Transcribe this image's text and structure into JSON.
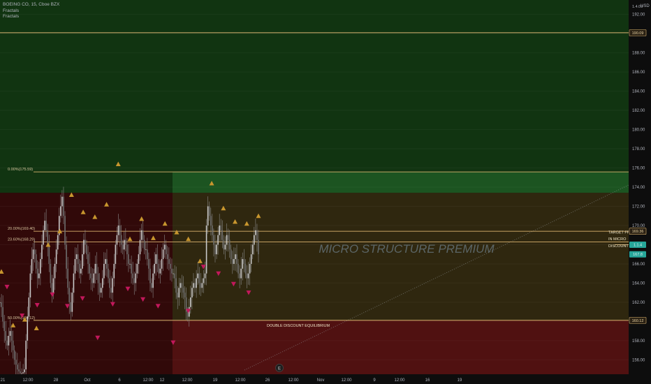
{
  "legend": {
    "symbol": "BOEING CO, 15, Cboe BZX",
    "studies": [
      "Fractals",
      "Fractals"
    ]
  },
  "currency": "USD",
  "watermark": "MICRO STRUCTURE PREMIUM",
  "colors": {
    "background": "#0d0d0d",
    "premium_zone": "#113411",
    "discount_zone": "#3a0c0c",
    "fib_line": "#d9b26f",
    "up_fractal": "#c8962e",
    "down_fractal": "#c2185b",
    "candle": "#8a8a8a",
    "price_badge": "#26a69a"
  },
  "chart_data": {
    "type": "candlestick",
    "symbol": "BOEING CO",
    "interval": "15",
    "exchange": "Cboe BZX",
    "ylim": [
      154.5,
      193.5
    ],
    "y_ticks": [
      156,
      158,
      160,
      162,
      164,
      166,
      168,
      170,
      172,
      174,
      176,
      178,
      180,
      182,
      184,
      186,
      188,
      190,
      192
    ],
    "x_ticks": [
      "21",
      "12:00",
      "28",
      "Oct",
      "6",
      "12:00",
      "12",
      "12:00",
      "19",
      "12:00",
      "26",
      "12:00",
      "Nov",
      "12:00",
      "9",
      "12:00",
      "16",
      "19"
    ],
    "top_partial_tick": "1.4.00",
    "horizontal_levels": [
      {
        "label": "",
        "price": 190.09,
        "badge": "190.09"
      },
      {
        "label": "0.00%(175.59)",
        "price": 175.59
      },
      {
        "label": "20.00%(169.40)",
        "price": 169.4,
        "badge": "169.36"
      },
      {
        "label": "23.60%(168.29)",
        "price": 168.29
      },
      {
        "label": "50.00%(160.12)",
        "price": 160.12,
        "badge": "160.12"
      }
    ],
    "zones": [
      {
        "name": "premium",
        "from": 173.4,
        "to": 193.5
      },
      {
        "name": "discount",
        "from": 154.5,
        "to": 173.4
      }
    ],
    "annotations": [
      {
        "text": "DOUBLE DISCOUNT EQUILIBRIUM",
        "price": 159.6
      },
      {
        "text": "TARGET FF",
        "price": 169.3
      },
      {
        "text": "IN MICRO",
        "price": 168.6
      },
      {
        "text": "DISCOUNT",
        "price": 167.9
      }
    ],
    "right_badges": [
      {
        "text": "1.1.4",
        "price": 168.0
      },
      {
        "text": "167.8",
        "price": 167.0
      }
    ],
    "event_marker": "E",
    "closes": [
      162.0,
      161.5,
      160.0,
      159.0,
      158.0,
      157.5,
      158.5,
      159.0,
      158.0,
      157.0,
      156.0,
      155.5,
      155.0,
      154.8,
      154.6,
      154.6,
      154.7,
      155.0,
      158.0,
      160.5,
      162.5,
      165.0,
      166.5,
      167.5,
      167.0,
      165.5,
      164.5,
      165.0,
      166.5,
      168.0,
      169.5,
      170.5,
      169.5,
      168.0,
      166.0,
      164.0,
      163.0,
      164.5,
      166.0,
      167.5,
      169.0,
      171.0,
      172.0,
      173.0,
      171.0,
      168.0,
      165.5,
      163.5,
      162.0,
      161.0,
      163.0,
      165.0,
      166.5,
      167.0,
      166.0,
      165.0,
      165.5,
      167.0,
      168.5,
      168.0,
      167.0,
      166.0,
      165.0,
      164.5,
      164.0,
      165.0,
      166.0,
      165.0,
      164.0,
      163.0,
      163.5,
      164.5,
      166.0,
      166.5,
      165.5,
      164.5,
      163.5,
      163.0,
      164.5,
      166.0,
      168.0,
      169.0,
      170.0,
      169.0,
      168.0,
      167.5,
      168.5,
      168.0,
      167.0,
      166.0,
      166.0,
      165.0,
      164.5,
      164.0,
      165.0,
      166.0,
      167.0,
      168.5,
      169.5,
      168.5,
      167.5,
      167.5,
      166.5,
      165.5,
      164.0,
      163.5,
      165.0,
      166.0,
      167.0,
      166.0,
      165.0,
      165.5,
      166.5,
      167.5,
      168.0,
      167.0,
      166.5,
      166.0,
      165.5,
      165.0,
      165.0,
      164.5,
      163.0,
      162.5,
      163.5,
      164.0,
      163.5,
      163.0,
      162.5,
      161.0,
      160.5,
      161.5,
      162.5,
      163.5,
      164.0,
      163.5,
      164.5,
      165.0,
      164.0,
      163.5,
      164.0,
      164.5,
      165.0,
      170.0,
      172.0,
      171.0,
      170.0,
      169.0,
      168.0,
      167.0,
      168.0,
      169.0,
      170.0,
      169.5,
      168.5,
      167.5,
      168.0,
      169.0,
      168.5,
      167.5,
      166.5,
      166.0,
      166.5,
      167.0,
      166.0,
      165.0,
      164.5,
      165.5,
      166.5,
      166.0,
      165.0,
      164.5,
      165.0,
      166.0,
      167.0,
      168.0,
      169.0,
      169.5,
      168.5,
      167.0
    ],
    "up_fractals": [
      {
        "price": 165.2
      },
      {
        "price": 159.6
      },
      {
        "price": 160.2
      },
      {
        "price": 159.3
      },
      {
        "price": 168.0
      },
      {
        "price": 169.4
      },
      {
        "price": 173.2
      },
      {
        "price": 171.4
      },
      {
        "price": 170.9
      },
      {
        "price": 172.2
      },
      {
        "price": 176.4
      },
      {
        "price": 168.6
      },
      {
        "price": 170.7
      },
      {
        "price": 168.7
      },
      {
        "price": 170.2
      },
      {
        "price": 169.3
      },
      {
        "price": 168.6
      },
      {
        "price": 166.3
      },
      {
        "price": 174.4
      },
      {
        "price": 171.8
      },
      {
        "price": 170.4
      },
      {
        "price": 170.2
      },
      {
        "price": 171.0
      }
    ],
    "down_fractals": [
      {
        "price": 163.6
      },
      {
        "price": 160.6
      },
      {
        "price": 161.7
      },
      {
        "price": 162.8
      },
      {
        "price": 161.6
      },
      {
        "price": 162.4
      },
      {
        "price": 158.3
      },
      {
        "price": 161.8
      },
      {
        "price": 163.4
      },
      {
        "price": 162.3
      },
      {
        "price": 161.6
      },
      {
        "price": 157.8
      },
      {
        "price": 161.1
      },
      {
        "price": 165.7
      },
      {
        "price": 165.0
      },
      {
        "price": 163.9
      },
      {
        "price": 163.0
      }
    ]
  }
}
